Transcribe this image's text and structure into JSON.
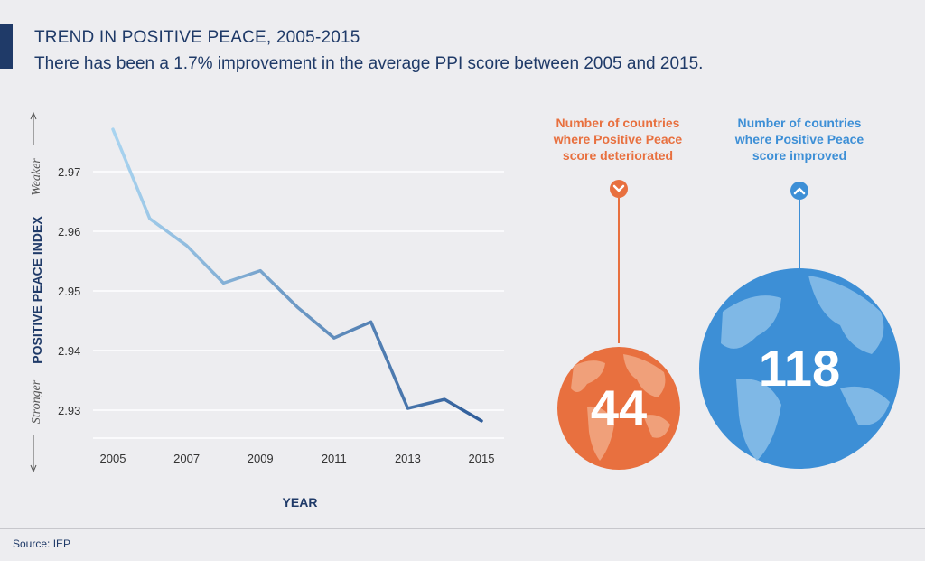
{
  "header": {
    "title": "TREND IN POSITIVE PEACE, 2005-2015",
    "subtitle": "There has been a 1.7% improvement in the average PPI score between 2005 and 2015."
  },
  "chart_data": {
    "type": "line",
    "title": "TREND IN POSITIVE PEACE, 2005-2015",
    "xlabel": "YEAR",
    "ylabel": "POSITIVE PEACE INDEX",
    "x": [
      2005,
      2006,
      2007,
      2008,
      2009,
      2010,
      2011,
      2012,
      2013,
      2014,
      2015
    ],
    "series": [
      {
        "values": [
          2.9771,
          2.9621,
          2.9576,
          2.9513,
          2.9534,
          2.9473,
          2.9421,
          2.9448,
          2.9303,
          2.9318,
          2.9282
        ]
      }
    ],
    "xticks": [
      "2005",
      "2007",
      "2009",
      "2011",
      "2013",
      "2015"
    ],
    "yticks": [
      "2.93",
      "2.94",
      "2.95",
      "2.96",
      "2.97"
    ],
    "ylim": [
      2.926,
      2.98
    ],
    "xlim": [
      2005,
      2015
    ],
    "axis_annotations": {
      "top": "Weaker",
      "bottom": "Stronger"
    },
    "grid": true,
    "line_gradient": [
      "#a9d4f0",
      "#2f5d9a"
    ]
  },
  "indicators": {
    "deteriorated": {
      "label_lines": [
        "Number of countries",
        "where Positive Peace",
        "score deteriorated"
      ],
      "value": "44",
      "color": "#e8703f",
      "icon": "chevron-down-icon"
    },
    "improved": {
      "label_lines": [
        "Number of countries",
        "where Positive Peace",
        "score improved"
      ],
      "value": "118",
      "color": "#3d8fd6",
      "icon": "chevron-up-icon"
    }
  },
  "source": "Source: IEP"
}
